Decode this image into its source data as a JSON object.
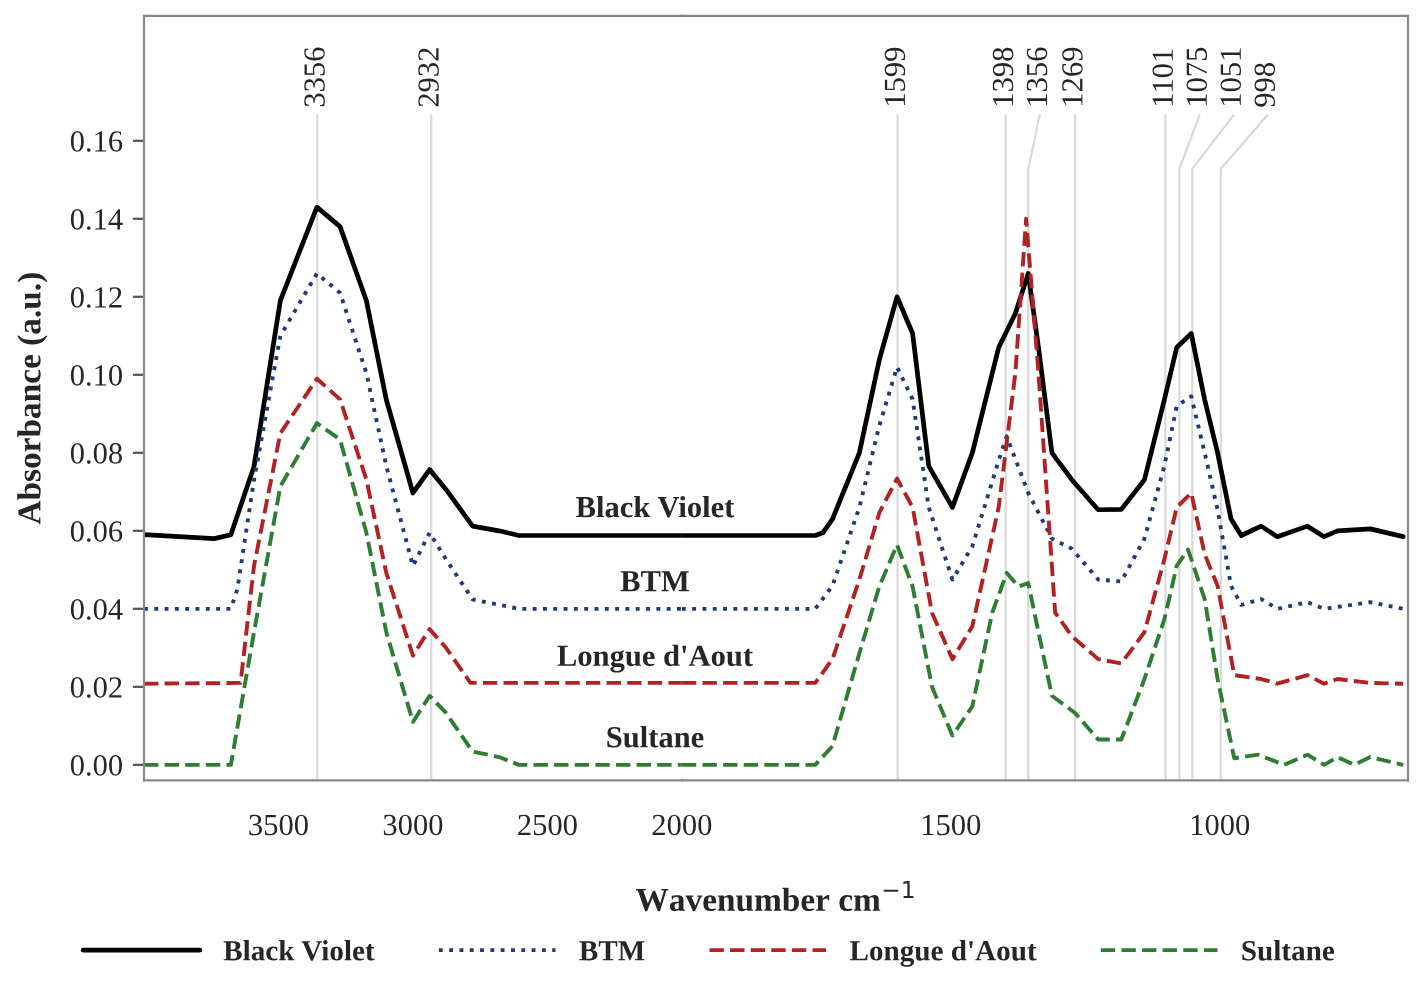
{
  "chart_data": [
    {
      "type": "line",
      "xlabel": "Wavenumber cm$^{−1}$",
      "ylabel": "Absorbance (a.u.)",
      "xlim": [
        4000,
        2000
      ],
      "xticks": [
        3500,
        3000,
        2500,
        2000
      ],
      "ylim": [
        -0.004,
        0.192
      ],
      "yticks": [
        {
          "value": 0,
          "label": "0.00"
        },
        {
          "value": 0.02,
          "label": "0.02"
        },
        {
          "value": 0.04,
          "label": "0.04"
        },
        {
          "value": 0.06,
          "label": "0.06"
        },
        {
          "value": 0.08,
          "label": "0.08"
        },
        {
          "value": 0.1,
          "label": "0.10"
        },
        {
          "value": 0.12,
          "label": "0.12"
        },
        {
          "value": 0.14,
          "label": "0.14"
        },
        {
          "value": 0.16,
          "label": "0.16"
        }
      ],
      "legend": "bottom",
      "series": [
        {
          "name": "Black Violet",
          "color": "#000000",
          "line_style": "solid",
          "x": [
            4000,
            3739,
            3677,
            3591,
            3493,
            3357,
            3271,
            3173,
            3099,
            3000,
            2938,
            2877,
            2778,
            2680,
            2606,
            2000
          ],
          "values": [
            0.059,
            0.058,
            0.059,
            0.0765,
            0.119,
            0.143,
            0.138,
            0.119,
            0.0936,
            0.0697,
            0.0757,
            0.0706,
            0.0612,
            0.06,
            0.0588,
            0.0588
          ]
        },
        {
          "name": "BTM",
          "color": "#1f3a7a",
          "line_style": "dotted",
          "x": [
            4000,
            3677,
            3653,
            3591,
            3493,
            3357,
            3271,
            3173,
            3099,
            3000,
            2938,
            2877,
            2778,
            2606,
            2000
          ],
          "values": [
            0.04,
            0.04,
            0.045,
            0.073,
            0.11,
            0.126,
            0.121,
            0.1004,
            0.0766,
            0.051,
            0.0595,
            0.0527,
            0.0424,
            0.04,
            0.04
          ]
        },
        {
          "name": "Longue d'Aout",
          "color": "#b22222",
          "line_style": "dashed",
          "x": [
            4000,
            3641,
            3591,
            3493,
            3357,
            3271,
            3173,
            3099,
            3000,
            2938,
            2877,
            2786,
            2000
          ],
          "values": [
            0.0208,
            0.021,
            0.051,
            0.085,
            0.099,
            0.0937,
            0.0731,
            0.0492,
            0.028,
            0.0348,
            0.03,
            0.021,
            0.021
          ]
        },
        {
          "name": "Sultane",
          "color": "#2e7d32",
          "line_style": "dashed",
          "x": [
            4000,
            3677,
            3591,
            3493,
            3357,
            3271,
            3173,
            3099,
            3000,
            2938,
            2877,
            2778,
            2680,
            2606,
            2000
          ],
          "values": [
            0,
            0,
            0.034,
            0.0714,
            0.0876,
            0.0834,
            0.0595,
            0.034,
            0.011,
            0.0177,
            0.0133,
            0.0034,
            0.002,
            0,
            0
          ]
        }
      ],
      "ref_lines": [
        {
          "axis": "x",
          "value": 3356,
          "label": "3356",
          "color": "#d9d9d9"
        },
        {
          "axis": "x",
          "value": 2932,
          "label": "2932",
          "color": "#d9d9d9"
        }
      ]
    },
    {
      "type": "line",
      "xlim": [
        2000,
        650
      ],
      "xticks": [
        1500,
        1000
      ],
      "ylim": [
        -0.004,
        0.192
      ],
      "tick_labels": "x",
      "series": [
        {
          "color": "#000000",
          "line_style": "solid",
          "x": [
            2000,
            1752,
            1738,
            1720,
            1670,
            1633,
            1600,
            1571,
            1541,
            1497,
            1460,
            1411,
            1380,
            1356,
            1337,
            1312,
            1275,
            1226,
            1183,
            1140,
            1103,
            1080,
            1053,
            1028,
            1004,
            979,
            960,
            923,
            893,
            837,
            806,
            781,
            720,
            659
          ],
          "values": [
            0.0588,
            0.0588,
            0.0595,
            0.063,
            0.08,
            0.1038,
            0.12,
            0.1106,
            0.0766,
            0.066,
            0.08,
            0.107,
            0.1157,
            0.126,
            0.107,
            0.08,
            0.0731,
            0.0654,
            0.0655,
            0.0731,
            0.0936,
            0.107,
            0.1106,
            0.0936,
            0.08,
            0.063,
            0.0588,
            0.0612,
            0.0585,
            0.0612,
            0.0585,
            0.06,
            0.0605,
            0.0585
          ]
        },
        {
          "color": "#1f3a7a",
          "line_style": "dotted",
          "x": [
            2000,
            1752,
            1720,
            1670,
            1633,
            1600,
            1571,
            1541,
            1497,
            1460,
            1411,
            1396,
            1356,
            1312,
            1275,
            1226,
            1183,
            1140,
            1103,
            1080,
            1053,
            1028,
            1004,
            979,
            960,
            923,
            893,
            837,
            806,
            720,
            659
          ],
          "values": [
            0.04,
            0.04,
            0.0459,
            0.066,
            0.0869,
            0.102,
            0.0937,
            0.066,
            0.0475,
            0.056,
            0.078,
            0.0842,
            0.0697,
            0.058,
            0.0554,
            0.0475,
            0.047,
            0.058,
            0.0766,
            0.092,
            0.0945,
            0.08,
            0.0654,
            0.0459,
            0.041,
            0.0425,
            0.04,
            0.0417,
            0.04,
            0.0417,
            0.04
          ]
        },
        {
          "color": "#b22222",
          "line_style": "dashed",
          "x": [
            2000,
            1752,
            1720,
            1670,
            1633,
            1600,
            1571,
            1535,
            1497,
            1460,
            1411,
            1380,
            1360,
            1337,
            1306,
            1275,
            1226,
            1183,
            1140,
            1103,
            1080,
            1053,
            1028,
            1004,
            973,
            923,
            893,
            837,
            806,
            781,
            720,
            659
          ],
          "values": [
            0.021,
            0.021,
            0.0271,
            0.0475,
            0.0646,
            0.0734,
            0.066,
            0.039,
            0.0271,
            0.0355,
            0.066,
            0.1004,
            0.14,
            0.1004,
            0.039,
            0.033,
            0.0271,
            0.026,
            0.034,
            0.0527,
            0.066,
            0.0697,
            0.054,
            0.0459,
            0.023,
            0.022,
            0.0208,
            0.023,
            0.0208,
            0.022,
            0.021,
            0.0208
          ]
        },
        {
          "color": "#2e7d32",
          "line_style": "dashed",
          "x": [
            2000,
            1752,
            1720,
            1670,
            1633,
            1600,
            1571,
            1535,
            1497,
            1460,
            1423,
            1396,
            1374,
            1356,
            1337,
            1312,
            1269,
            1226,
            1183,
            1140,
            1103,
            1080,
            1059,
            1028,
            1004,
            973,
            929,
            880,
            837,
            806,
            781,
            750,
            720,
            659
          ],
          "values": [
            0,
            0,
            0.0048,
            0.0286,
            0.0457,
            0.0564,
            0.0457,
            0.02,
            0.0075,
            0.015,
            0.039,
            0.0492,
            0.0457,
            0.0466,
            0.034,
            0.0177,
            0.0133,
            0.0065,
            0.0065,
            0.022,
            0.0373,
            0.051,
            0.0552,
            0.0425,
            0.022,
            0.0017,
            0.0026,
            0,
            0.0026,
            0,
            0.002,
            0,
            0.002,
            0
          ]
        }
      ],
      "ref_lines": [
        {
          "axis": "x",
          "value": 1599,
          "label": "1599",
          "color": "#d9d9d9"
        },
        {
          "axis": "x",
          "value": 1398,
          "label": "1398",
          "color": "#d9d9d9"
        },
        {
          "axis": "x",
          "value": 1356,
          "label": "1356",
          "color": "#d9d9d9"
        },
        {
          "axis": "x",
          "value": 1269,
          "label": "1269",
          "color": "#d9d9d9"
        },
        {
          "axis": "x",
          "value": 1101,
          "label": "1101",
          "color": "#d9d9d9"
        },
        {
          "axis": "x",
          "value": 1075,
          "label": "1075",
          "color": "#d9d9d9"
        },
        {
          "axis": "x",
          "value": 1051,
          "label": "1051",
          "color": "#d9d9d9"
        },
        {
          "axis": "x",
          "value": 998,
          "label": "998",
          "color": "#d9d9d9"
        }
      ]
    }
  ]
}
